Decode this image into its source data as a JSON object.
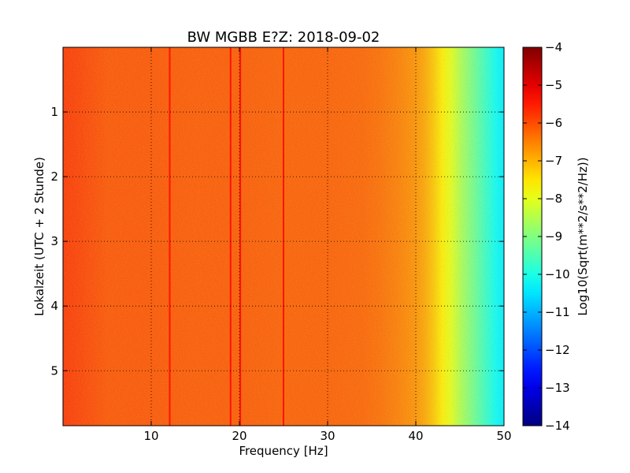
{
  "chart_data": {
    "type": "heatmap",
    "title": "BW MGBB E?Z: 2018-09-02",
    "xlabel": "Frequency [Hz]",
    "ylabel": "Lokalzeit (UTC + 2 Stunde)",
    "colorbar_label": "Log10(Sqrt(m**2/s**2/Hz))",
    "colormap": "jet",
    "xlim": [
      0,
      50
    ],
    "ylim": [
      5.85,
      0
    ],
    "x_ticks": [
      10,
      20,
      30,
      40,
      50
    ],
    "x_tick_labels": [
      "10",
      "20",
      "30",
      "40",
      "50"
    ],
    "y_ticks": [
      1,
      2,
      3,
      4,
      5
    ],
    "y_tick_labels": [
      "1",
      "2",
      "3",
      "4",
      "5"
    ],
    "clim": [
      -14,
      -4
    ],
    "colorbar_ticks": [
      -4,
      -5,
      -6,
      -7,
      -8,
      -9,
      -10,
      -11,
      -12,
      -13,
      -14
    ],
    "colorbar_tick_labels": [
      "−4",
      "−5",
      "−6",
      "−7",
      "−8",
      "−9",
      "−10",
      "−11",
      "−12",
      "−13",
      "−14"
    ],
    "grid": true,
    "grid_style": "dotted",
    "frequency_profile": {
      "x": [
        0,
        5,
        10,
        15,
        20,
        25,
        30,
        34,
        36,
        38,
        40,
        41,
        42,
        43,
        44,
        45,
        46,
        47,
        48,
        49,
        50
      ],
      "values": [
        -5.8,
        -6.1,
        -6.1,
        -6.15,
        -6.15,
        -6.2,
        -6.2,
        -6.25,
        -6.35,
        -6.5,
        -6.7,
        -6.9,
        -7.2,
        -7.6,
        -8.0,
        -8.5,
        -8.9,
        -9.3,
        -9.7,
        -10.1,
        -10.4
      ]
    },
    "spectral_lines_hz": [
      12.1,
      19.0,
      20.1,
      25.0
    ],
    "spectral_line_value": -5.3
  }
}
